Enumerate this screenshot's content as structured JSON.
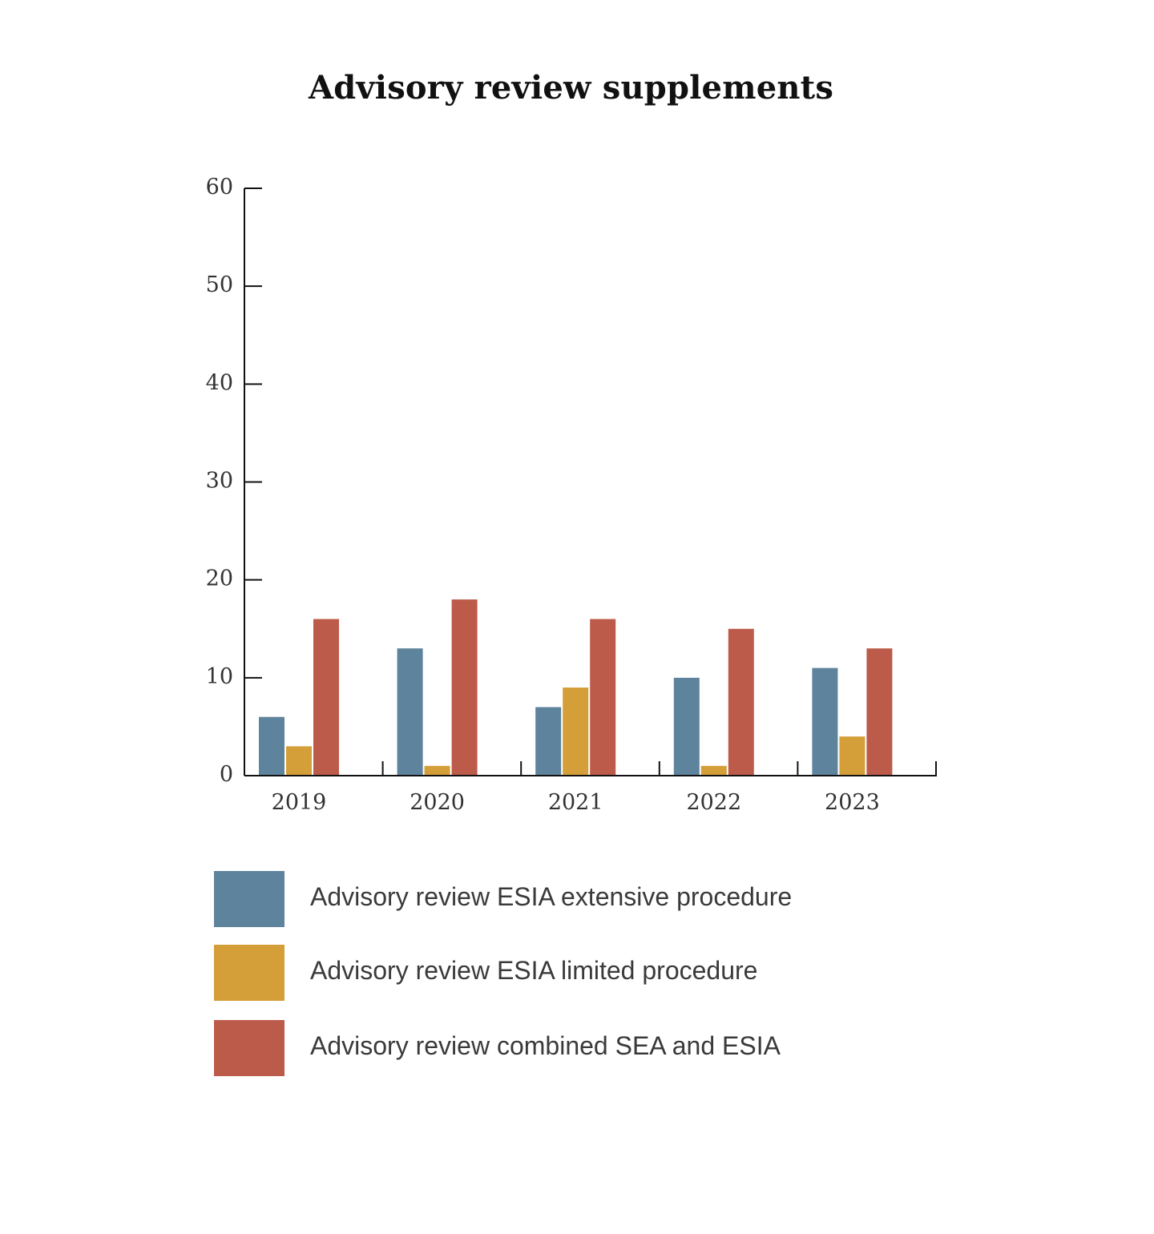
{
  "chart_data": {
    "type": "bar",
    "title": "Advisory review supplements",
    "xlabel": "",
    "ylabel": "",
    "ylim": [
      0,
      60
    ],
    "yticks": [
      "0",
      "10",
      "20",
      "30",
      "40",
      "50",
      "60"
    ],
    "categories": [
      "2019",
      "2020",
      "2021",
      "2022",
      "2023"
    ],
    "series": [
      {
        "name": "Advisory review ESIA extensive procedure",
        "color": "#5E839C",
        "values": [
          6,
          13,
          7,
          10,
          11
        ]
      },
      {
        "name": "Advisory review ESIA limited procedure",
        "color": "#D49E38",
        "values": [
          3,
          1,
          9,
          1,
          4
        ]
      },
      {
        "name": "Advisory review combined SEA and ESIA",
        "color": "#BD5B4A",
        "values": [
          16,
          18,
          16,
          15,
          13
        ]
      }
    ],
    "legend_position": "bottom"
  }
}
